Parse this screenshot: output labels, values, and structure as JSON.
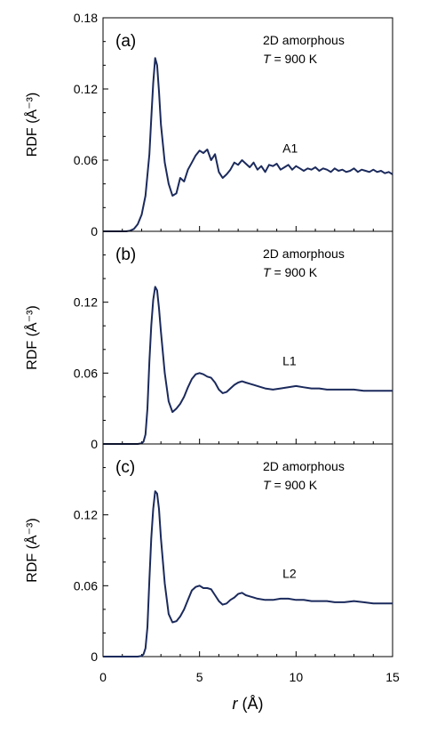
{
  "figure": {
    "xlabel_var": "r",
    "xlabel_unit": " (Å)",
    "ylabel": "RDF (Å⁻³)",
    "xticks": [
      "0",
      "5",
      "10",
      "15"
    ],
    "line_color": "#1b2a5c"
  },
  "chart_data": [
    {
      "type": "line",
      "panel": "(a)",
      "annotation_line1": "2D amorphous",
      "annotation_T": "T",
      "annotation_rest": " = 900 K",
      "series_label": "A1",
      "xlim": [
        0,
        15
      ],
      "ylim": [
        0,
        0.18
      ],
      "yticks": [
        "0",
        "0.06",
        "0.12",
        "0.18"
      ],
      "ytick_values": [
        0,
        0.06,
        0.12,
        0.18
      ],
      "grid": false,
      "x": [
        0,
        1.2,
        1.4,
        1.6,
        1.8,
        2.0,
        2.2,
        2.4,
        2.5,
        2.6,
        2.7,
        2.8,
        2.9,
        3.0,
        3.2,
        3.4,
        3.6,
        3.8,
        4.0,
        4.2,
        4.4,
        4.6,
        4.8,
        5.0,
        5.2,
        5.4,
        5.6,
        5.8,
        6.0,
        6.2,
        6.4,
        6.6,
        6.8,
        7.0,
        7.2,
        7.4,
        7.6,
        7.8,
        8.0,
        8.2,
        8.4,
        8.6,
        8.8,
        9.0,
        9.2,
        9.4,
        9.6,
        9.8,
        10.0,
        10.2,
        10.4,
        10.6,
        10.8,
        11.0,
        11.2,
        11.4,
        11.6,
        11.8,
        12.0,
        12.2,
        12.4,
        12.6,
        12.8,
        13.0,
        13.2,
        13.4,
        13.6,
        13.8,
        14.0,
        14.2,
        14.4,
        14.6,
        14.8,
        15.0
      ],
      "y": [
        0,
        0,
        0.0005,
        0.002,
        0.006,
        0.014,
        0.03,
        0.065,
        0.095,
        0.125,
        0.146,
        0.14,
        0.118,
        0.09,
        0.058,
        0.04,
        0.03,
        0.032,
        0.045,
        0.042,
        0.052,
        0.058,
        0.064,
        0.068,
        0.066,
        0.069,
        0.06,
        0.065,
        0.05,
        0.045,
        0.048,
        0.052,
        0.058,
        0.056,
        0.06,
        0.057,
        0.054,
        0.058,
        0.052,
        0.055,
        0.05,
        0.056,
        0.055,
        0.057,
        0.052,
        0.054,
        0.056,
        0.052,
        0.055,
        0.053,
        0.051,
        0.053,
        0.052,
        0.054,
        0.051,
        0.053,
        0.052,
        0.05,
        0.053,
        0.051,
        0.052,
        0.05,
        0.051,
        0.053,
        0.05,
        0.052,
        0.051,
        0.05,
        0.052,
        0.05,
        0.051,
        0.049,
        0.05,
        0.048
      ]
    },
    {
      "type": "line",
      "panel": "(b)",
      "annotation_line1": "2D amorphous",
      "annotation_T": "T",
      "annotation_rest": " = 900 K",
      "series_label": "L1",
      "xlim": [
        0,
        15
      ],
      "ylim": [
        0,
        0.18
      ],
      "yticks": [
        "0",
        "0.06",
        "0.12"
      ],
      "ytick_values": [
        0,
        0.06,
        0.12
      ],
      "grid": false,
      "x": [
        0,
        1.8,
        2.0,
        2.1,
        2.2,
        2.3,
        2.4,
        2.5,
        2.6,
        2.7,
        2.8,
        2.9,
        3.0,
        3.2,
        3.4,
        3.6,
        3.8,
        4.0,
        4.2,
        4.4,
        4.6,
        4.8,
        5.0,
        5.2,
        5.4,
        5.6,
        5.8,
        6.0,
        6.2,
        6.4,
        6.6,
        6.8,
        7.0,
        7.2,
        7.4,
        7.6,
        7.8,
        8.0,
        8.4,
        8.8,
        9.2,
        9.6,
        10.0,
        10.4,
        10.8,
        11.2,
        11.6,
        12.0,
        12.5,
        13.0,
        13.5,
        14.0,
        14.5,
        15.0
      ],
      "y": [
        0,
        0,
        0.0005,
        0.002,
        0.008,
        0.03,
        0.07,
        0.1,
        0.122,
        0.133,
        0.13,
        0.115,
        0.095,
        0.06,
        0.036,
        0.027,
        0.03,
        0.034,
        0.04,
        0.048,
        0.055,
        0.059,
        0.06,
        0.059,
        0.057,
        0.056,
        0.052,
        0.046,
        0.043,
        0.044,
        0.047,
        0.05,
        0.052,
        0.053,
        0.052,
        0.051,
        0.05,
        0.049,
        0.047,
        0.046,
        0.047,
        0.048,
        0.049,
        0.048,
        0.047,
        0.047,
        0.046,
        0.046,
        0.046,
        0.046,
        0.045,
        0.045,
        0.045,
        0.045
      ]
    },
    {
      "type": "line",
      "panel": "(c)",
      "annotation_line1": "2D amorphous",
      "annotation_T": "T",
      "annotation_rest": " = 900 K",
      "series_label": "L2",
      "xlim": [
        0,
        15
      ],
      "ylim": [
        0,
        0.18
      ],
      "yticks": [
        "0",
        "0.06",
        "0.12"
      ],
      "ytick_values": [
        0,
        0.06,
        0.12
      ],
      "grid": false,
      "x": [
        0,
        1.8,
        2.0,
        2.1,
        2.2,
        2.3,
        2.4,
        2.5,
        2.6,
        2.7,
        2.8,
        2.9,
        3.0,
        3.2,
        3.4,
        3.6,
        3.8,
        4.0,
        4.2,
        4.4,
        4.6,
        4.8,
        5.0,
        5.2,
        5.4,
        5.6,
        5.8,
        6.0,
        6.2,
        6.4,
        6.6,
        6.8,
        7.0,
        7.2,
        7.4,
        7.6,
        7.8,
        8.0,
        8.4,
        8.8,
        9.2,
        9.6,
        10.0,
        10.4,
        10.8,
        11.2,
        11.6,
        12.0,
        12.5,
        13.0,
        13.5,
        14.0,
        14.5,
        15.0
      ],
      "y": [
        0,
        0,
        0.0005,
        0.002,
        0.007,
        0.025,
        0.065,
        0.1,
        0.125,
        0.14,
        0.138,
        0.125,
        0.1,
        0.062,
        0.036,
        0.029,
        0.03,
        0.034,
        0.04,
        0.048,
        0.056,
        0.059,
        0.06,
        0.058,
        0.058,
        0.057,
        0.052,
        0.047,
        0.044,
        0.045,
        0.048,
        0.05,
        0.053,
        0.054,
        0.052,
        0.051,
        0.05,
        0.049,
        0.048,
        0.048,
        0.049,
        0.049,
        0.048,
        0.048,
        0.047,
        0.047,
        0.047,
        0.046,
        0.046,
        0.047,
        0.046,
        0.045,
        0.045,
        0.045
      ]
    }
  ]
}
